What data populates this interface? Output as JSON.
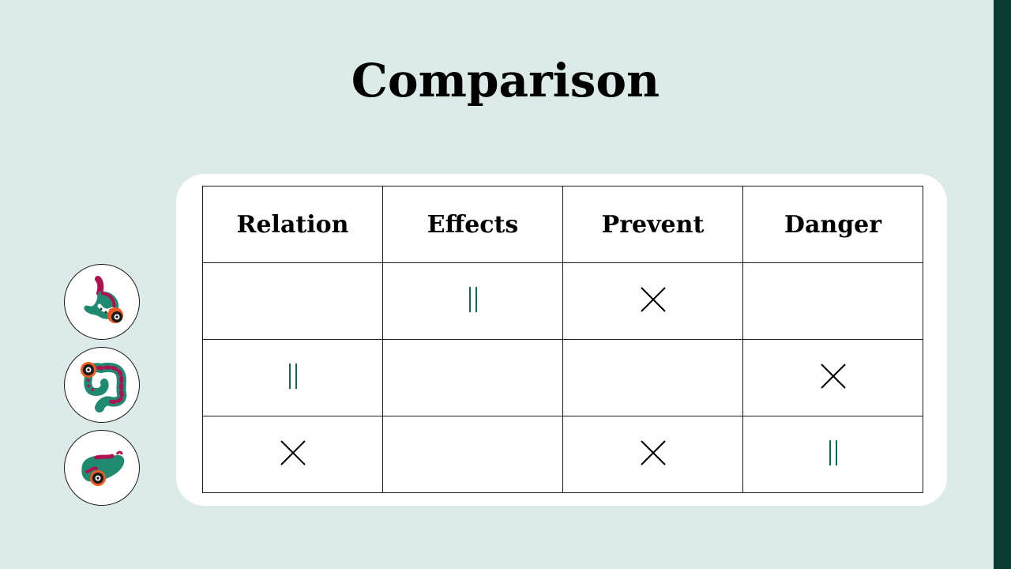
{
  "slide": {
    "title": "Comparison"
  },
  "table": {
    "headers": [
      "Relation",
      "Effects",
      "Prevent",
      "Danger"
    ],
    "rows": [
      {
        "organ_icon": "stomach-icon",
        "cells": [
          "",
          "equal",
          "cross",
          ""
        ]
      },
      {
        "organ_icon": "intestine-icon",
        "cells": [
          "equal",
          "",
          "",
          "cross"
        ]
      },
      {
        "organ_icon": "liver-icon",
        "cells": [
          "cross",
          "",
          "cross",
          "equal"
        ]
      }
    ]
  },
  "colors": {
    "background": "#ddebe8",
    "side_bar": "#083c32",
    "card": "#ffffff",
    "equal_mark": "#0d6b55",
    "cross_mark": "#000000",
    "organ_green": "#1f8a70",
    "organ_magenta": "#b0104f",
    "virus_orange": "#ef5a24"
  }
}
